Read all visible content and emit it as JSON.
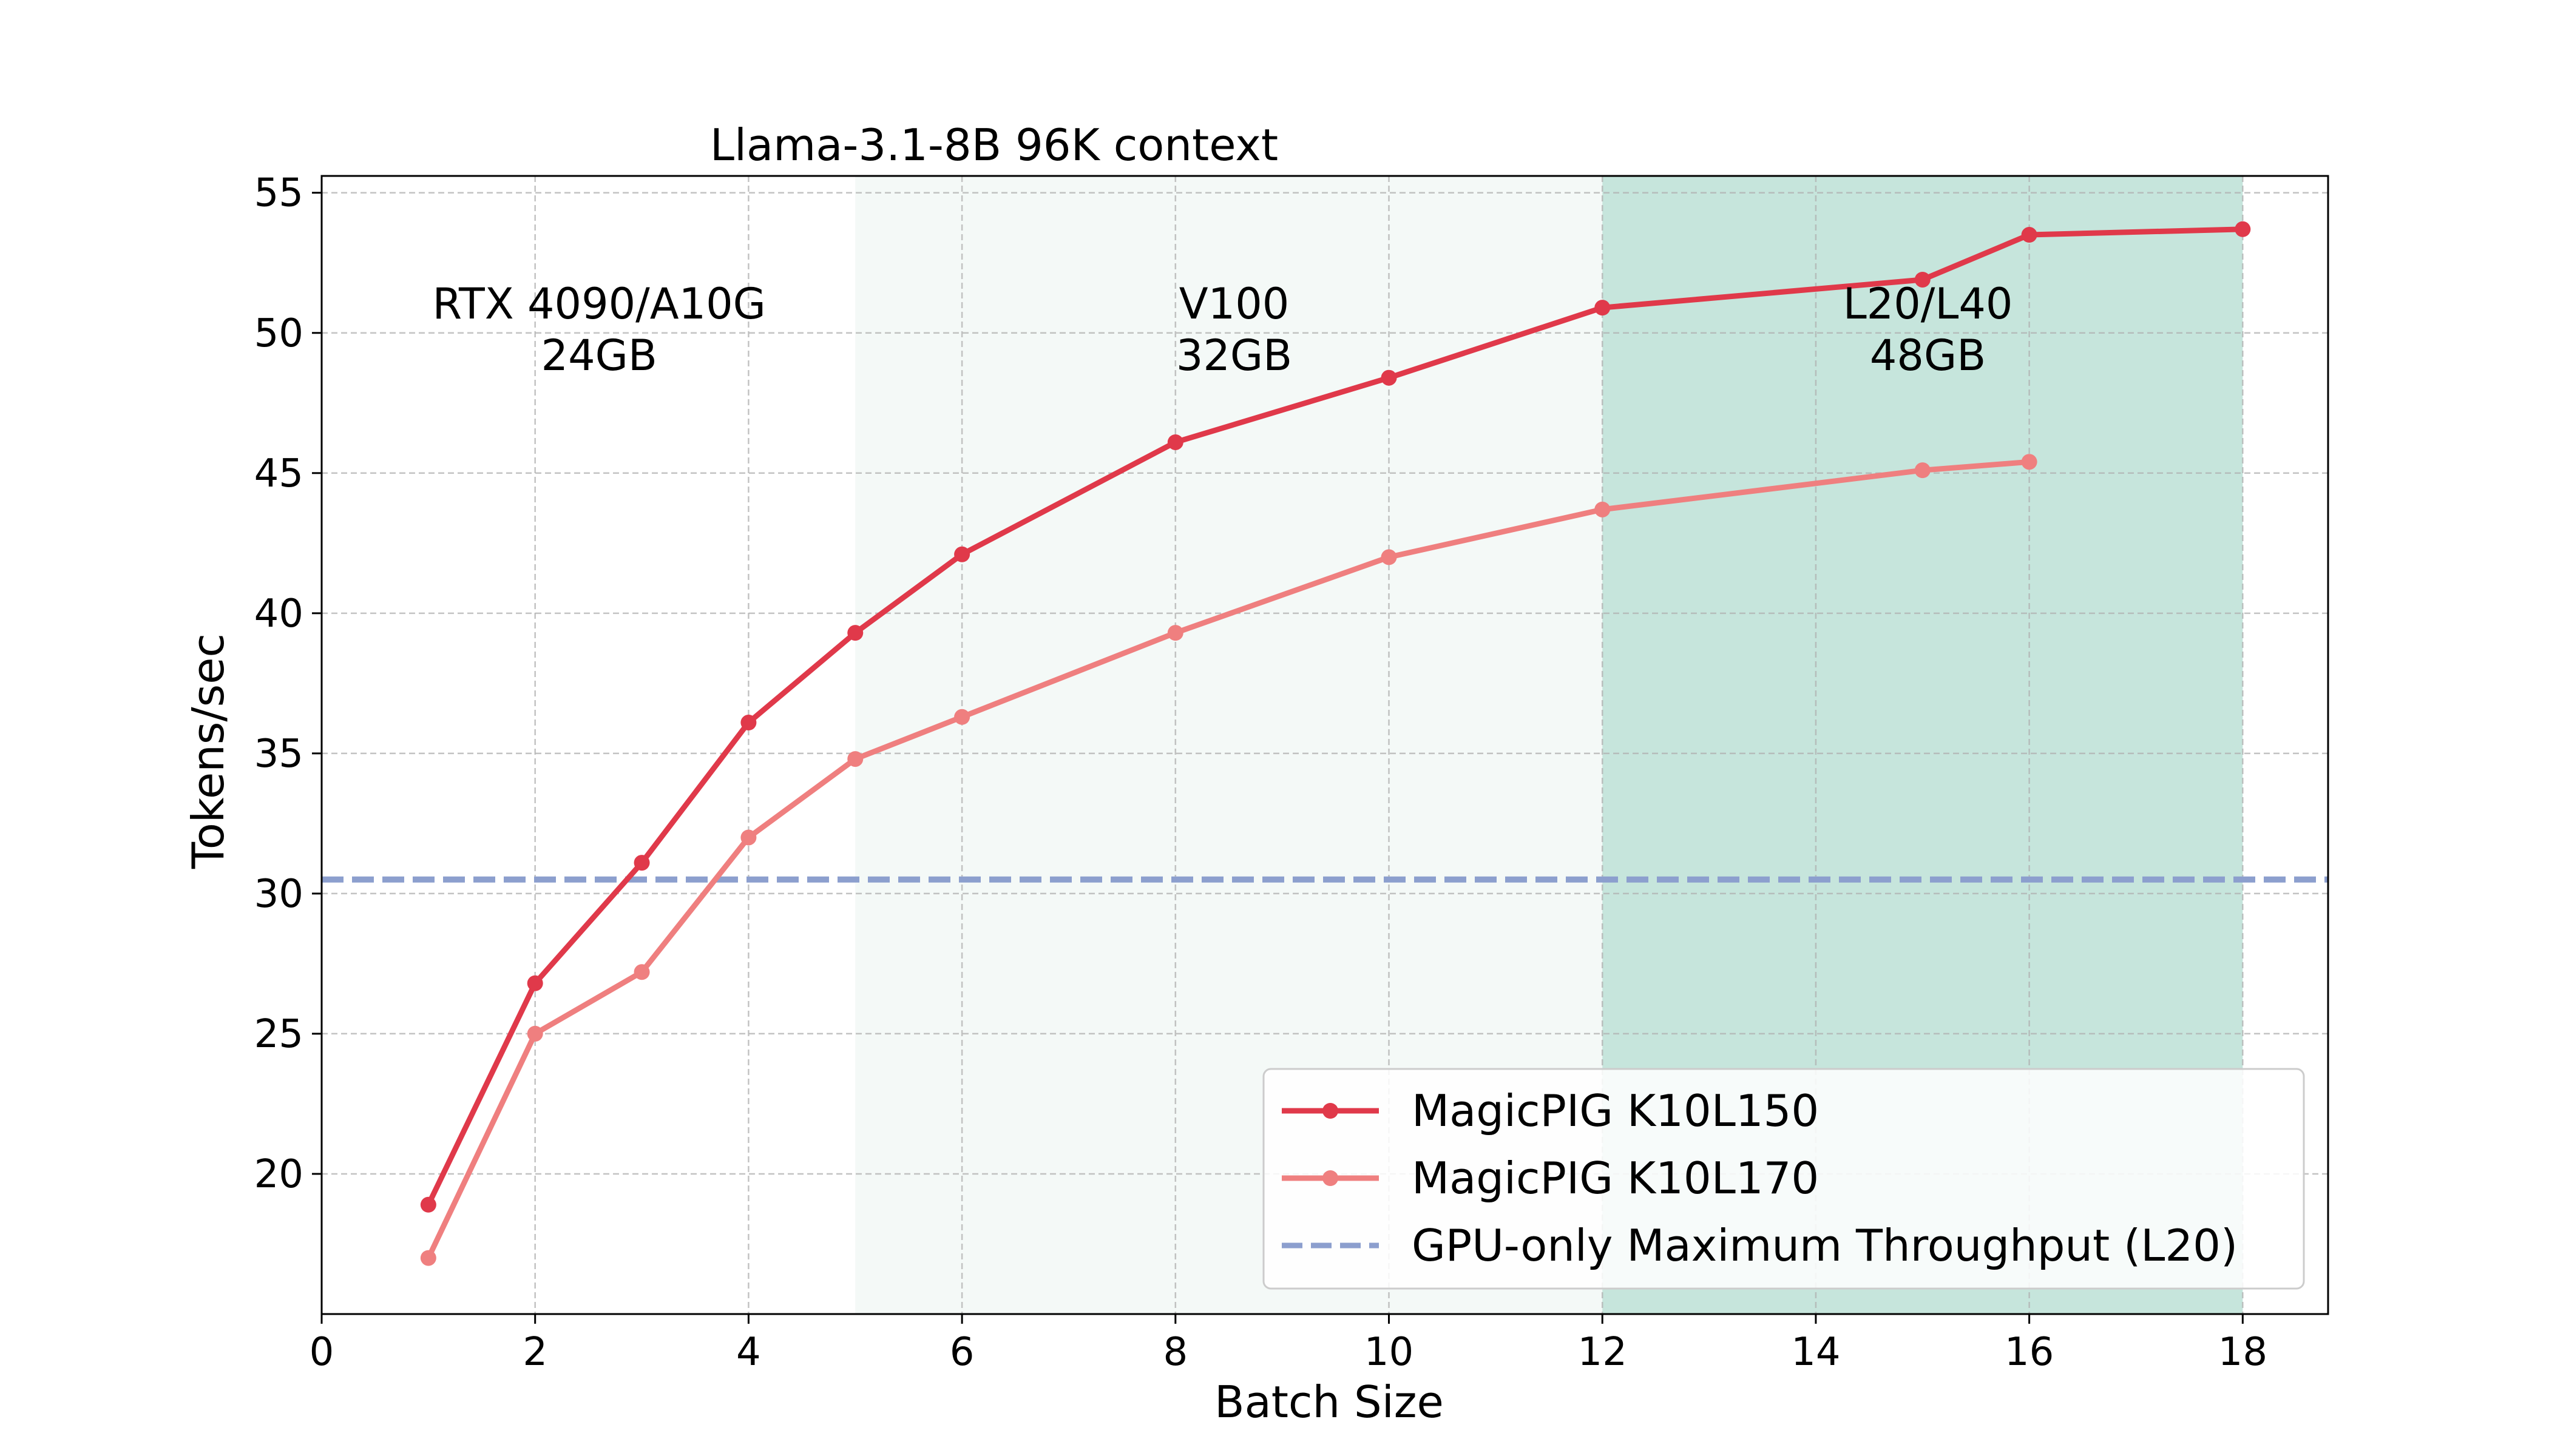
{
  "chart_data": {
    "type": "line",
    "title": "Llama-3.1-8B 96K context",
    "xlabel": "Batch Size",
    "ylabel": "Tokens/sec",
    "xlim": [
      0,
      18.8
    ],
    "ylim": [
      15,
      55.6
    ],
    "xticks": [
      0,
      2,
      4,
      6,
      8,
      10,
      12,
      14,
      16,
      18
    ],
    "yticks": [
      20,
      25,
      30,
      35,
      40,
      45,
      50,
      55
    ],
    "grid": true,
    "legend_position": "lower-right",
    "series": [
      {
        "name": "MagicPIG K10L150",
        "color": "#e0394a",
        "style": "solid",
        "marker": "circle",
        "x": [
          1,
          2,
          3,
          4,
          5,
          6,
          8,
          10,
          12,
          15,
          16,
          18
        ],
        "y": [
          18.9,
          26.8,
          31.1,
          36.1,
          39.3,
          42.1,
          46.1,
          48.4,
          50.9,
          51.9,
          53.5,
          53.7
        ]
      },
      {
        "name": "MagicPIG K10L170",
        "color": "#ef7f7f",
        "style": "solid",
        "marker": "circle",
        "x": [
          1,
          2,
          3,
          4,
          5,
          6,
          8,
          10,
          12,
          15,
          16
        ],
        "y": [
          17.0,
          25.0,
          27.2,
          32.0,
          34.8,
          36.3,
          39.3,
          42.0,
          43.7,
          45.1,
          45.4
        ]
      },
      {
        "name": "GPU-only Maximum Throughput (L20)",
        "color": "#8c9fce",
        "style": "dashed",
        "y": 30.5
      }
    ],
    "regions": [
      {
        "x_start": 0,
        "x_end": 5,
        "color": "#ffffff",
        "label_line1": "RTX 4090/A10G",
        "label_line2": "24GB",
        "label_x": 2.6
      },
      {
        "x_start": 5,
        "x_end": 12,
        "color": "#f4f9f7",
        "label_line1": "V100",
        "label_line2": "32GB",
        "label_x": 8.55
      },
      {
        "x_start": 12,
        "x_end": 18,
        "color": "#c6e5dc",
        "label_line1": "L20/L40",
        "label_line2": "48GB",
        "label_x": 15.05
      }
    ]
  }
}
